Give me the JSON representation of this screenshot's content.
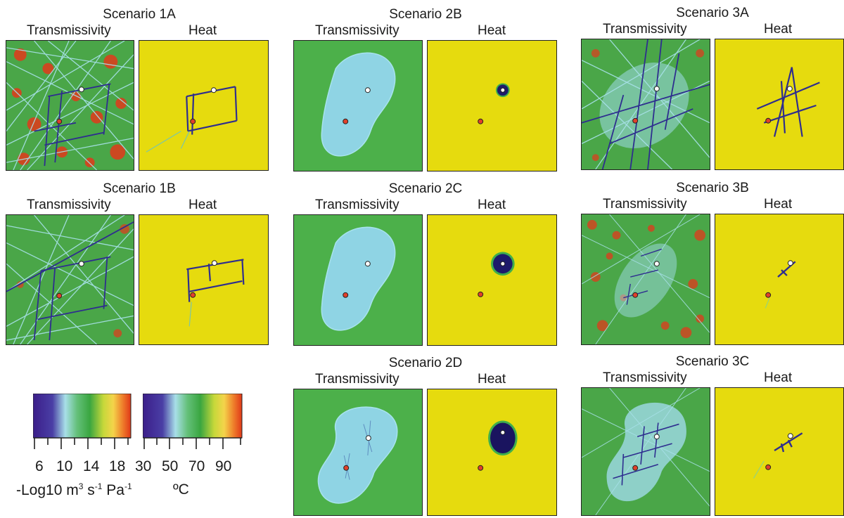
{
  "scenarios": [
    {
      "id": "1A",
      "title": "Scenario 1A",
      "left_label": "Transmissivity",
      "right_label": "Heat"
    },
    {
      "id": "1B",
      "title": "Scenario 1B",
      "left_label": "Transmissivity",
      "right_label": "Heat"
    },
    {
      "id": "2B",
      "title": "Scenario 2B",
      "left_label": "Transmissivity",
      "right_label": "Heat"
    },
    {
      "id": "2C",
      "title": "Scenario 2C",
      "left_label": "Transmissivity",
      "right_label": "Heat"
    },
    {
      "id": "2D",
      "title": "Scenario 2D",
      "left_label": "Transmissivity",
      "right_label": "Heat"
    },
    {
      "id": "3A",
      "title": "Scenario 3A",
      "left_label": "Transmissivity",
      "right_label": "Heat"
    },
    {
      "id": "3B",
      "title": "Scenario 3B",
      "left_label": "Transmissivity",
      "right_label": "Heat"
    },
    {
      "id": "3C",
      "title": "Scenario 3C",
      "left_label": "Transmissivity",
      "right_label": "Heat"
    }
  ],
  "colorbar_transmissivity": {
    "ticks": [
      "6",
      "10",
      "14",
      "18"
    ],
    "unit_main": "-Log10 m",
    "unit_sup1": "3",
    "unit_mid": " s",
    "unit_sup2": "-1",
    "unit_end": " Pa",
    "unit_sup3": "-1"
  },
  "colorbar_heat": {
    "ticks": [
      "30",
      "50",
      "70",
      "90"
    ],
    "unit": "ºC"
  },
  "colors": {
    "heat_bg": "#e6db0e",
    "trans_green": "#49b046",
    "trans_cyan": "#8fd6e6",
    "trans_red": "#e2391b",
    "dark_blue": "#2e2d8f",
    "injection_dot": "#e0402a",
    "production_dot": "#ffffff"
  }
}
